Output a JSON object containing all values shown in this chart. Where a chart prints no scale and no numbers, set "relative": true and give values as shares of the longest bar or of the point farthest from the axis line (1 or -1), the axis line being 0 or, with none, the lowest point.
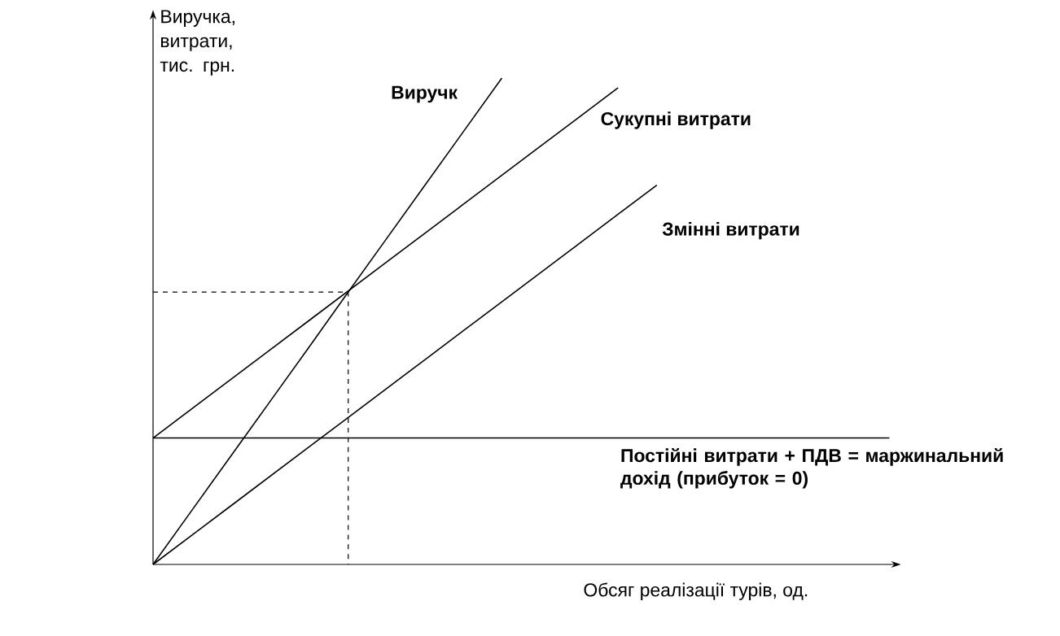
{
  "chart_data": {
    "type": "line",
    "relative": true,
    "ylabel": "Виручка, витрати, тис. грн.",
    "xlabel": "Обсяг реалізації турів, од.",
    "legend": false,
    "marker": "none",
    "line_style": "solid",
    "categories": [
      null,
      null,
      null,
      null,
      null,
      null,
      null,
      null,
      null,
      null,
      null,
      null,
      null,
      null,
      null,
      null,
      null,
      null,
      null,
      null
    ],
    "series": [
      {
        "name": "Виручк",
        "color": "#000000",
        "values": [
          0,
          0.111,
          0.222,
          0.333,
          0.444,
          0.556,
          0.667,
          0.778,
          0.889,
          1,
          null,
          null,
          null,
          null,
          null,
          null,
          null,
          null,
          null,
          null
        ]
      },
      {
        "name": "Сукупні витрати",
        "color": "#000000",
        "values": [
          0.26,
          0.32,
          0.38,
          0.44,
          0.5,
          0.56,
          0.62,
          0.68,
          0.74,
          0.8,
          0.86,
          0.92,
          0.98,
          null,
          null,
          null,
          null,
          null,
          null,
          null
        ]
      },
      {
        "name": "Змінні витрати",
        "color": "#000000",
        "values": [
          0,
          0.06,
          0.12,
          0.18,
          0.24,
          0.3,
          0.36,
          0.42,
          0.48,
          0.54,
          0.6,
          0.66,
          0.72,
          0.78,
          null,
          null,
          null,
          null,
          null,
          null
        ]
      },
      {
        "name": "Постійні витрати + ПДВ = маржинальний дохід (прибуток = 0)",
        "color": "#000000",
        "values": [
          0.26,
          0.26,
          0.26,
          0.26,
          0.26,
          0.26,
          0.26,
          0.26,
          0.26,
          0.26,
          0.26,
          0.26,
          0.26,
          0.26,
          0.26,
          0.26,
          0.26,
          0.26,
          0.26,
          0.26
        ]
      }
    ],
    "ref_lines": [
      {
        "axis": "y",
        "value": 0.56,
        "line_style": "dashed",
        "color": "#000000"
      }
    ]
  }
}
